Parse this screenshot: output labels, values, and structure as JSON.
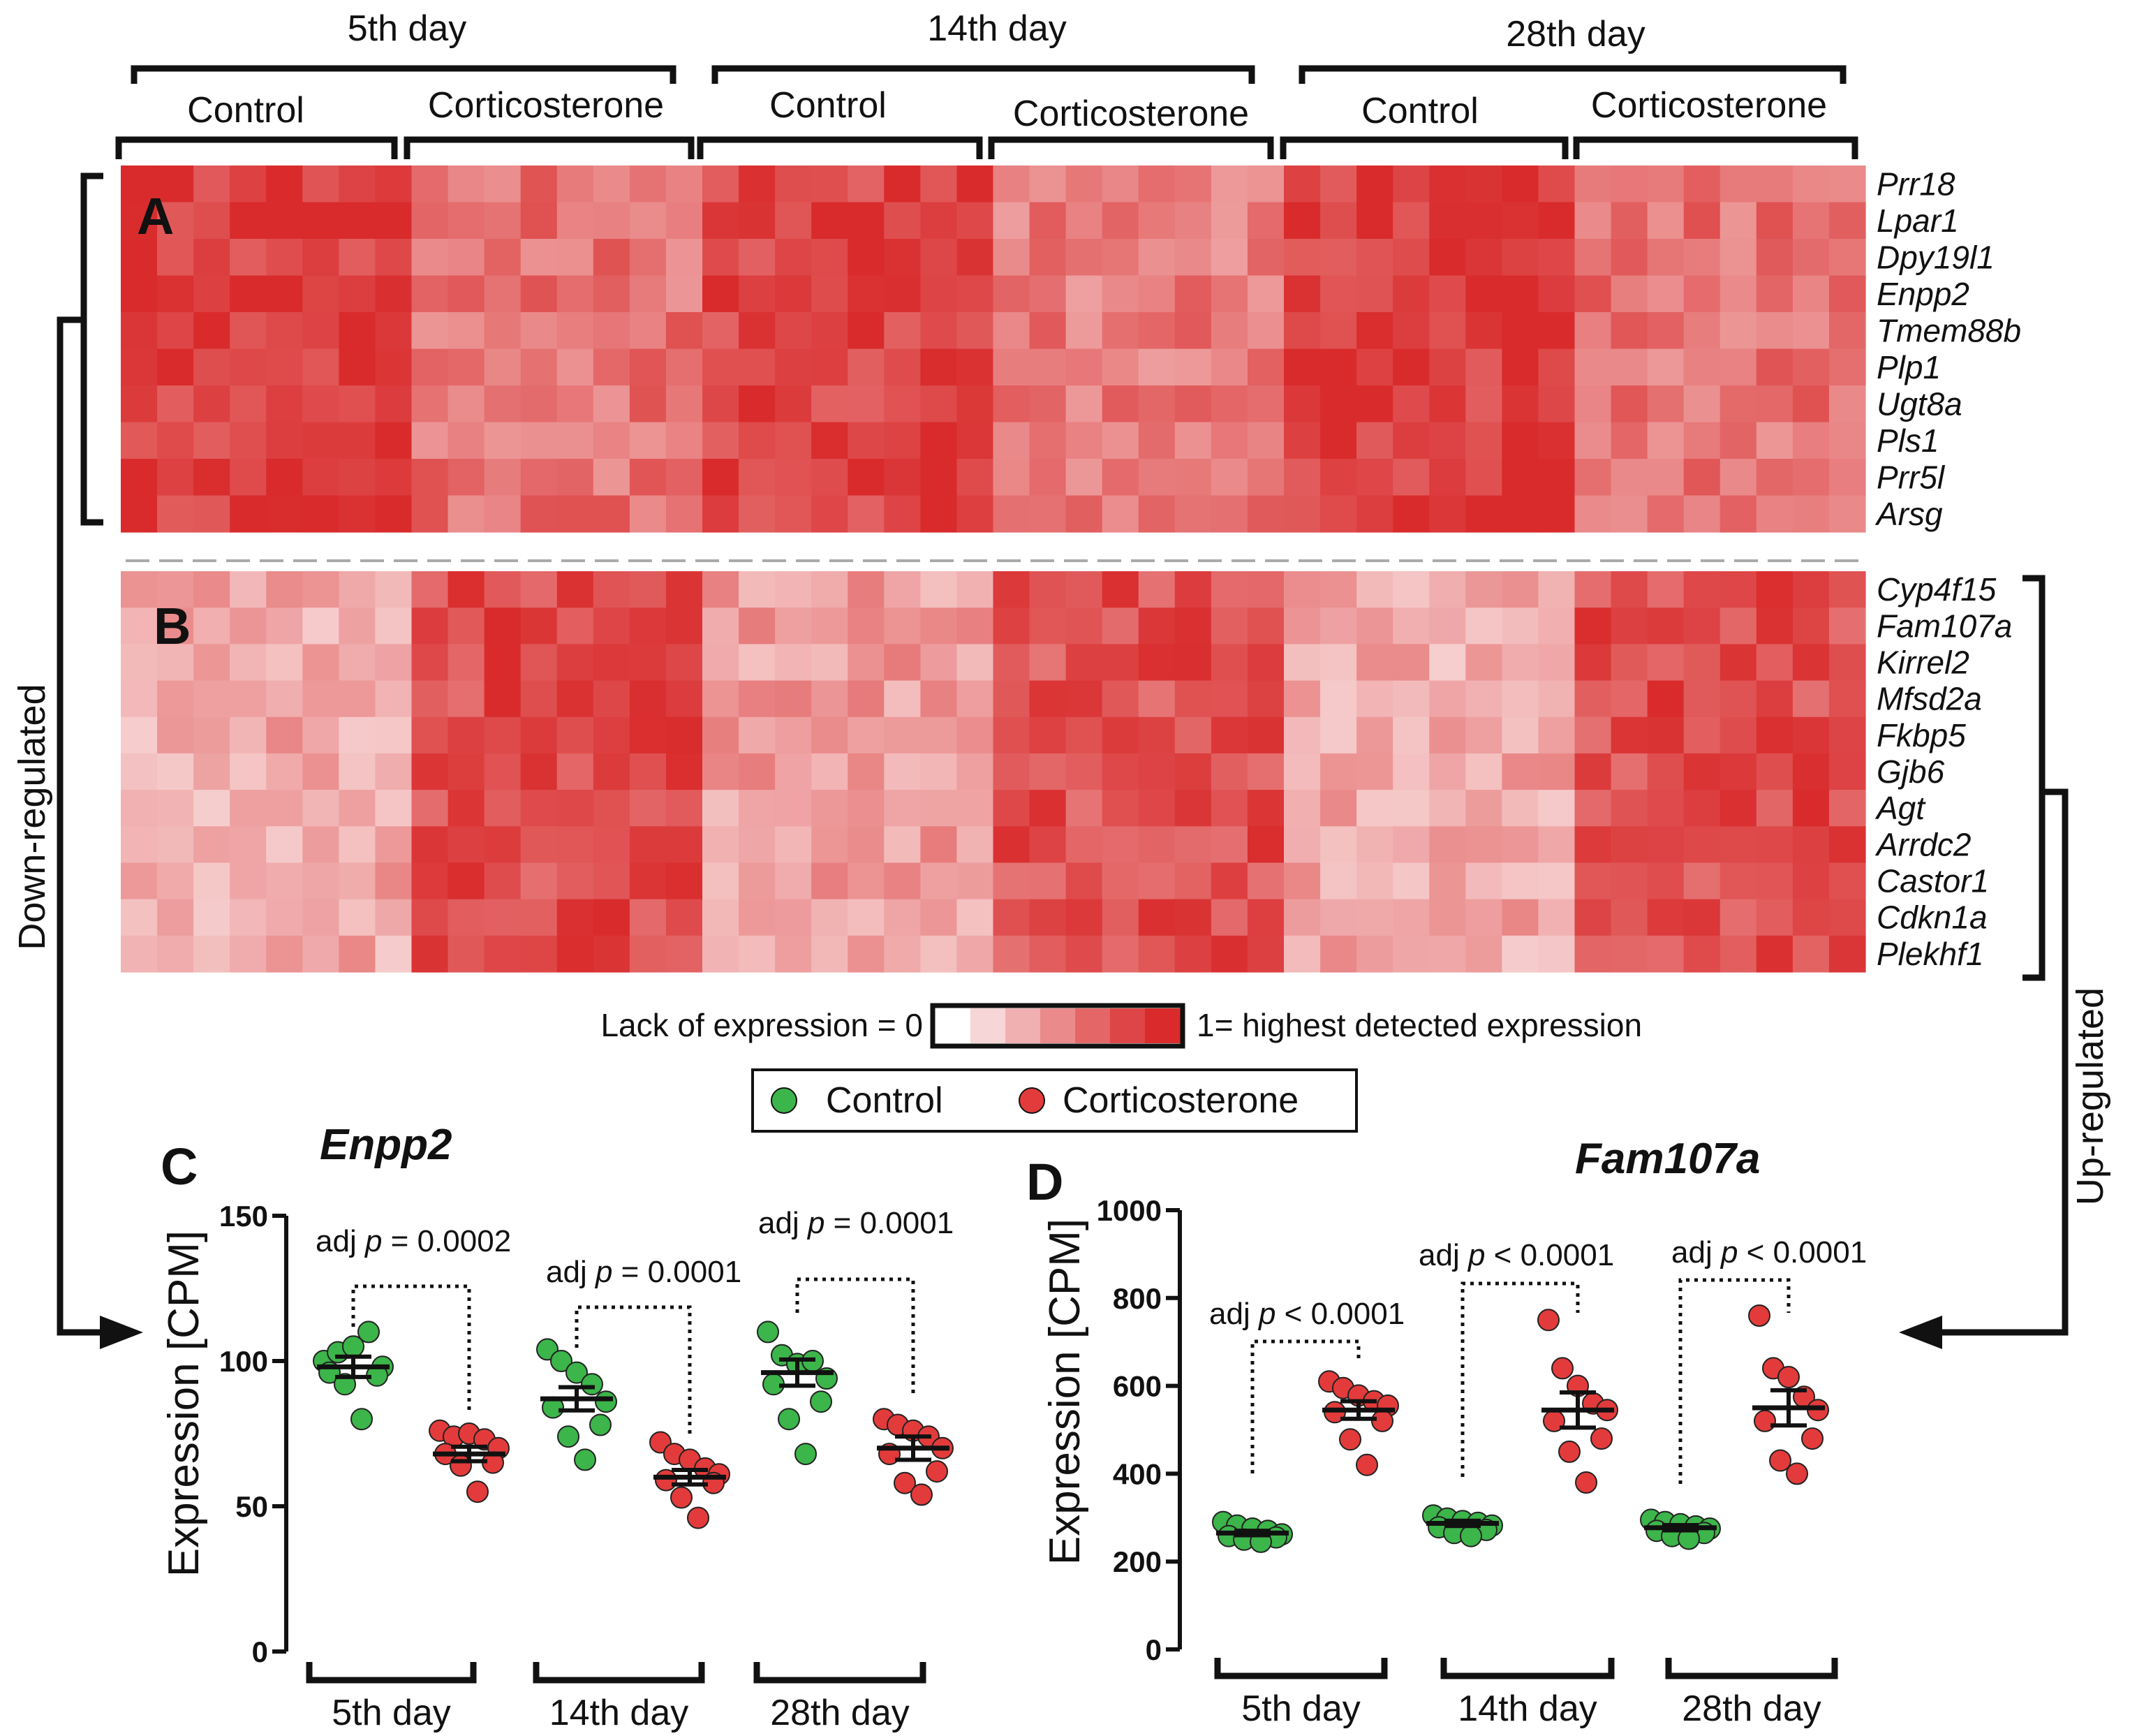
{
  "panel_labels": {
    "a": "A",
    "b": "B",
    "c": "C",
    "d": "D"
  },
  "timepoints": [
    "5th day",
    "14th day",
    "28th day"
  ],
  "group_labels": [
    "Control",
    "Corticosterone"
  ],
  "side_labels": {
    "down": "Down-regulated",
    "up": "Up-regulated"
  },
  "colorbar": {
    "left_label": "Lack of  expression = 0",
    "right_label": "1= highest detected expression",
    "colors": [
      "#ffffff",
      "#f6d6d6",
      "#f0b0b1",
      "#ea8a8b",
      "#e46667",
      "#de4546",
      "#d92b2c"
    ]
  },
  "legend": {
    "control": "Control",
    "cort": "Corticosterone",
    "control_color": "#3cb54a",
    "cort_color": "#e33b3b"
  },
  "chart_data": [
    {
      "type": "heatmap",
      "panel": "A",
      "rows": [
        "Prr18",
        "Lpar1",
        "Dpy19l1",
        "Enpp2",
        "Tmem88b",
        "Plp1",
        "Ugt8a",
        "Pls1",
        "Prr5l",
        "Arsg"
      ],
      "columns_per_group": 8,
      "column_groups": [
        "5th day Control",
        "5th day Corticosterone",
        "14th day Control",
        "14th day Corticosterone",
        "28th day Control",
        "28th day Corticosterone"
      ],
      "value_range": [
        0,
        1
      ],
      "group_mean_levels": [
        0.93,
        0.66,
        0.9,
        0.62,
        0.93,
        0.66
      ]
    },
    {
      "type": "heatmap",
      "panel": "B",
      "rows": [
        "Cyp4f15",
        "Fam107a",
        "Kirrel2",
        "Mfsd2a",
        "Fkbp5",
        "Gjb6",
        "Agt",
        "Arrdc2",
        "Castor1",
        "Cdkn1a",
        "Plekhf1"
      ],
      "columns_per_group": 8,
      "column_groups": [
        "5th day Control",
        "5th day Corticosterone",
        "14th day Control",
        "14th day Corticosterone",
        "28th day Control",
        "28th day Corticosterone"
      ],
      "value_range": [
        0,
        1
      ],
      "group_mean_levels": [
        0.4,
        0.85,
        0.46,
        0.82,
        0.4,
        0.84
      ]
    },
    {
      "type": "scatter",
      "panel": "C",
      "title": "Enpp2",
      "ylabel": "Expression [CPM]",
      "ylim": [
        0,
        150
      ],
      "yticks": [
        0,
        50,
        100,
        150
      ],
      "categories": [
        "5th day",
        "14th day",
        "28th day"
      ],
      "series": [
        {
          "name": "Control",
          "points": [
            [
              100,
              103,
              105,
              110,
              98,
              96,
              95,
              92,
              80
            ],
            [
              104,
              100,
              96,
              92,
              86,
              84,
              78,
              74,
              66
            ],
            [
              110,
              102,
              99,
              100,
              94,
              92,
              86,
              80,
              68
            ]
          ],
          "mean": [
            98,
            87,
            96
          ],
          "sem": [
            3.5,
            4.0,
            4.5
          ]
        },
        {
          "name": "Corticosterone",
          "points": [
            [
              76,
              74,
              75,
              73,
              70,
              68,
              65,
              64,
              55
            ],
            [
              72,
              68,
              66,
              63,
              61,
              59,
              58,
              53,
              46
            ],
            [
              80,
              78,
              76,
              74,
              70,
              68,
              62,
              58,
              54
            ]
          ],
          "mean": [
            68,
            60,
            70
          ],
          "sem": [
            2.5,
            2.5,
            4.0
          ]
        }
      ],
      "annotations": [
        {
          "prefix": "adj ",
          "p": "p",
          "rest": " = 0.0002"
        },
        {
          "prefix": "adj ",
          "p": "p",
          "rest": " = 0.0001"
        },
        {
          "prefix": "adj ",
          "p": "p",
          "rest": " = 0.0001"
        }
      ]
    },
    {
      "type": "scatter",
      "panel": "D",
      "title": "Fam107a",
      "ylabel": "Expression [CPM]",
      "ylim": [
        0,
        1000
      ],
      "yticks": [
        0,
        200,
        400,
        600,
        800,
        1000
      ],
      "categories": [
        "5th day",
        "14th day",
        "28th day"
      ],
      "series": [
        {
          "name": "Control",
          "points": [
            [
              290,
              282,
              275,
              270,
              262,
              258,
              255,
              250,
              245
            ],
            [
              305,
              298,
              292,
              288,
              282,
              278,
              272,
              265,
              258
            ],
            [
              295,
              290,
              285,
              280,
              275,
              270,
              265,
              258,
              252
            ]
          ],
          "mean": [
            265,
            287,
            277
          ],
          "sem": [
            5,
            6,
            6
          ]
        },
        {
          "name": "Corticosterone",
          "points": [
            [
              610,
              595,
              578,
              565,
              555,
              540,
              520,
              478,
              420
            ],
            [
              750,
              640,
              600,
              560,
              545,
              520,
              480,
              450,
              380
            ],
            [
              760,
              640,
              620,
              575,
              545,
              520,
              480,
              430,
              400
            ]
          ],
          "mean": [
            545,
            545,
            550
          ],
          "sem": [
            20,
            40,
            40
          ]
        }
      ],
      "annotations": [
        {
          "prefix": "adj ",
          "p": "p",
          "rest": " < 0.0001"
        },
        {
          "prefix": "adj ",
          "p": "p",
          "rest": " < 0.0001"
        },
        {
          "prefix": "adj ",
          "p": "p",
          "rest": " < 0.0001"
        }
      ]
    }
  ]
}
